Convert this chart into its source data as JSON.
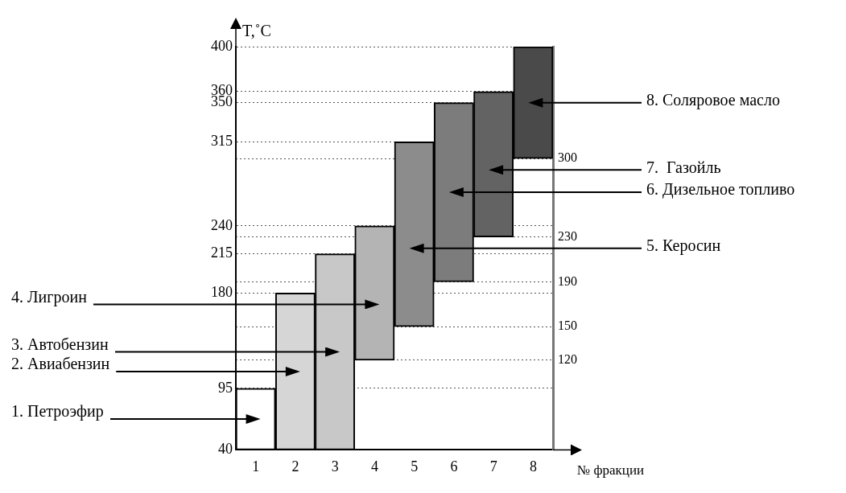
{
  "chart_data": {
    "type": "bar",
    "xlabel": "№ фракции",
    "ylabel": "T,˚C",
    "categories": [
      "1",
      "2",
      "3",
      "4",
      "5",
      "6",
      "7",
      "8"
    ],
    "base": [
      40,
      40,
      40,
      120,
      150,
      190,
      230,
      300
    ],
    "values": [
      55,
      140,
      175,
      120,
      165,
      160,
      130,
      100
    ],
    "colors": [
      "#ffffff",
      "#d6d6d6",
      "#c8c8c8",
      "#b4b4b4",
      "#8c8c8c",
      "#7c7c7c",
      "#636363",
      "#4a4a4a"
    ],
    "ylim": [
      40,
      400
    ],
    "yticks": [
      40,
      95,
      180,
      215,
      240,
      315,
      350,
      360,
      400
    ],
    "y2lim": [
      40,
      400
    ],
    "y2ticks": [
      120,
      150,
      190,
      230,
      300
    ],
    "grid": "y",
    "legend": false,
    "annotations": [
      "1. Петроэфир",
      "2. Авиабензин",
      "3. Автобензин",
      "4. Лигроин",
      "5. Керосин",
      "6. Дизельное топливо",
      "7.  Газойль",
      "8. Соляровое масло"
    ]
  }
}
